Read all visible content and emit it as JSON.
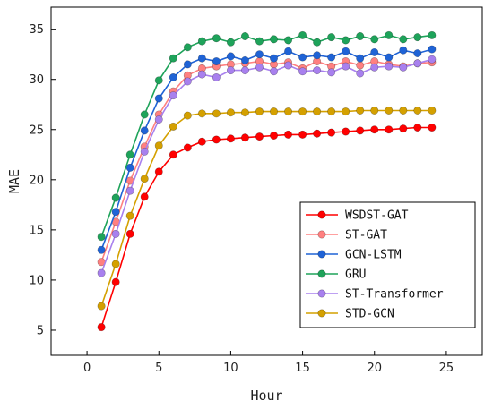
{
  "chart_data": {
    "type": "line",
    "title": "",
    "xlabel": "Hour",
    "ylabel": "MAE",
    "xlim": [
      -2.5,
      27.5
    ],
    "ylim": [
      2.5,
      37.2
    ],
    "x_ticks": [
      0,
      5,
      10,
      15,
      20,
      25
    ],
    "y_ticks": [
      5,
      10,
      15,
      20,
      25,
      30,
      35
    ],
    "grid": false,
    "legend_position": "bottom-right",
    "x": [
      1,
      2,
      3,
      4,
      5,
      6,
      7,
      8,
      9,
      10,
      11,
      12,
      13,
      14,
      15,
      16,
      17,
      18,
      19,
      20,
      21,
      22,
      23,
      24
    ],
    "series": [
      {
        "name": "WSDST-GAT",
        "color": "#ff0000",
        "values": [
          5.3,
          9.8,
          14.6,
          18.3,
          20.8,
          22.5,
          23.2,
          23.8,
          24.0,
          24.1,
          24.2,
          24.3,
          24.4,
          24.5,
          24.5,
          24.6,
          24.7,
          24.8,
          24.9,
          25.0,
          25.0,
          25.1,
          25.2,
          25.2
        ]
      },
      {
        "name": "ST-GAT",
        "color": "#ff8080",
        "values": [
          11.8,
          15.8,
          19.9,
          23.3,
          26.5,
          28.8,
          30.4,
          31.1,
          31.3,
          31.5,
          31.6,
          31.8,
          31.5,
          31.7,
          31.1,
          31.8,
          31.3,
          31.8,
          31.4,
          31.8,
          31.5,
          31.3,
          31.6,
          31.7
        ]
      },
      {
        "name": "GCN-LSTM",
        "color": "#1f63d6",
        "values": [
          13.0,
          16.8,
          21.2,
          24.9,
          28.1,
          30.2,
          31.5,
          32.1,
          31.8,
          32.3,
          31.9,
          32.5,
          32.1,
          32.8,
          32.2,
          32.4,
          32.2,
          32.8,
          32.1,
          32.7,
          32.2,
          32.9,
          32.6,
          33.0
        ]
      },
      {
        "name": "GRU",
        "color": "#1ea35a",
        "values": [
          14.3,
          18.2,
          22.5,
          26.5,
          29.9,
          32.1,
          33.2,
          33.8,
          34.1,
          33.7,
          34.3,
          33.8,
          34.0,
          33.9,
          34.4,
          33.7,
          34.2,
          33.9,
          34.3,
          34.0,
          34.4,
          34.0,
          34.2,
          34.4
        ]
      },
      {
        "name": "ST-Transformer",
        "color": "#a880ee",
        "values": [
          10.7,
          14.6,
          18.9,
          22.8,
          26.0,
          28.4,
          29.8,
          30.5,
          30.2,
          30.9,
          30.9,
          31.2,
          30.8,
          31.4,
          30.8,
          30.9,
          30.7,
          31.3,
          30.6,
          31.2,
          31.3,
          31.2,
          31.6,
          32.0
        ]
      },
      {
        "name": "STD-GCN",
        "color": "#d4a000",
        "values": [
          7.4,
          11.6,
          16.4,
          20.1,
          23.4,
          25.3,
          26.4,
          26.6,
          26.6,
          26.7,
          26.7,
          26.8,
          26.8,
          26.8,
          26.8,
          26.8,
          26.8,
          26.8,
          26.9,
          26.9,
          26.9,
          26.9,
          26.9,
          26.9
        ]
      }
    ]
  }
}
